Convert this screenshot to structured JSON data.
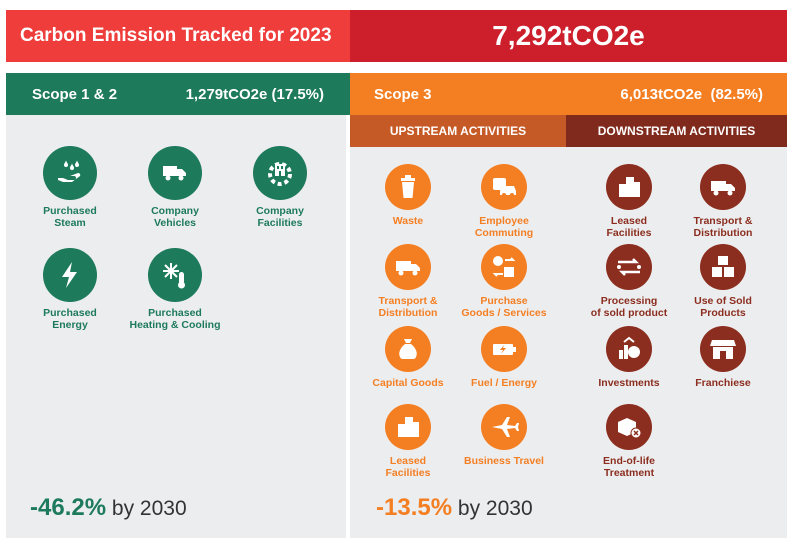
{
  "header": {
    "title": "Carbon Emission Tracked for 2023",
    "total": "7,292tCO2e"
  },
  "scope12": {
    "label": "Scope 1 & 2",
    "value": "1,279tCO2e (17.5%)",
    "items": [
      {
        "label": "Purchased\nSteam",
        "icon": "steam-hand-icon"
      },
      {
        "label": "Company\nVehicles",
        "icon": "truck-car-icon"
      },
      {
        "label": "Company\nFacilities",
        "icon": "facility-gear-icon"
      },
      {
        "label": "Purchased\nEnergy",
        "icon": "lightning-icon"
      },
      {
        "label": "Purchased\nHeating & Cooling",
        "icon": "snowflake-thermometer-icon"
      }
    ],
    "target_pct": "-46.2%",
    "target_suffix": "by 2030"
  },
  "scope3": {
    "label": "Scope 3",
    "value": "6,013tCO2e  (82.5%)",
    "upstream_label": "UPSTREAM ACTIVITIES",
    "downstream_label": "DOWNSTREAM ACTIVITIES",
    "upstream": [
      {
        "label": "Waste",
        "icon": "trash-icon"
      },
      {
        "label": "Employee\nCommuting",
        "icon": "car-bus-icon"
      },
      {
        "label": "Transport &\nDistribution",
        "icon": "truck-icon"
      },
      {
        "label": "Purchase\nGoods / Services",
        "icon": "goods-exchange-icon"
      },
      {
        "label": "Capital Goods",
        "icon": "money-bag-icon"
      },
      {
        "label": "Fuel / Energy",
        "icon": "battery-icon"
      },
      {
        "label": "Leased\nFacilities",
        "icon": "buildings-icon"
      },
      {
        "label": "Business Travel",
        "icon": "airplane-icon"
      }
    ],
    "downstream": [
      {
        "label": "Leased\nFacilities",
        "icon": "buildings-icon"
      },
      {
        "label": "Transport &\nDistribution",
        "icon": "delivery-truck-icon"
      },
      {
        "label": "Processing\nof sold product",
        "icon": "process-arrows-icon"
      },
      {
        "label": "Use of Sold\nProducts",
        "icon": "boxes-icon"
      },
      {
        "label": "Investments",
        "icon": "investment-icon"
      },
      {
        "label": "Franchiese",
        "icon": "storefront-icon"
      },
      {
        "label": "End-of-life\nTreatment",
        "icon": "box-disposal-icon"
      }
    ],
    "target_pct": "-13.5%",
    "target_suffix": "by 2030"
  },
  "colors": {
    "green": "#1d7a5b",
    "orange": "#f47f23",
    "dark_red": "#8b2e1f",
    "header_red": "#ee3d3a",
    "header_dark_red": "#cc1e2b"
  }
}
